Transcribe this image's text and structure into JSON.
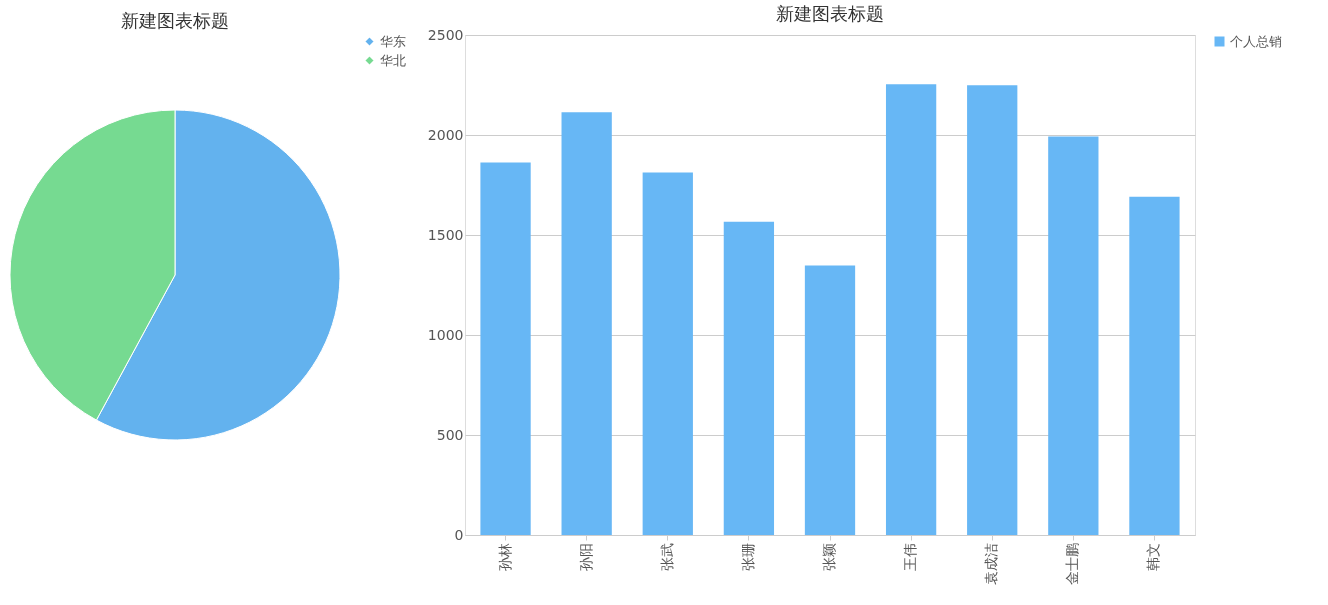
{
  "chart_data": [
    {
      "type": "pie",
      "title": "新建图表标题",
      "categories": [
        "华东",
        "华北"
      ],
      "values": [
        57.9,
        42.1
      ],
      "colors": [
        "#63b2ee",
        "#76da91"
      ],
      "legend": "right"
    },
    {
      "type": "bar",
      "title": "新建图表标题",
      "categories": [
        "孙林",
        "孙阳",
        "张武",
        "张珊",
        "张颖",
        "王伟",
        "袁成洁",
        "金士鹏",
        "韩文"
      ],
      "series": [
        {
          "name": "个人总销",
          "color": "#67b7f5",
          "values": [
            1863,
            2114,
            1812,
            1566,
            1348,
            2254,
            2249,
            1993,
            1691
          ]
        }
      ],
      "ylim": [
        0,
        2500
      ],
      "yticks": [
        0,
        500,
        1000,
        1500,
        2000,
        2500
      ],
      "grid": "y",
      "legend": "right"
    }
  ]
}
